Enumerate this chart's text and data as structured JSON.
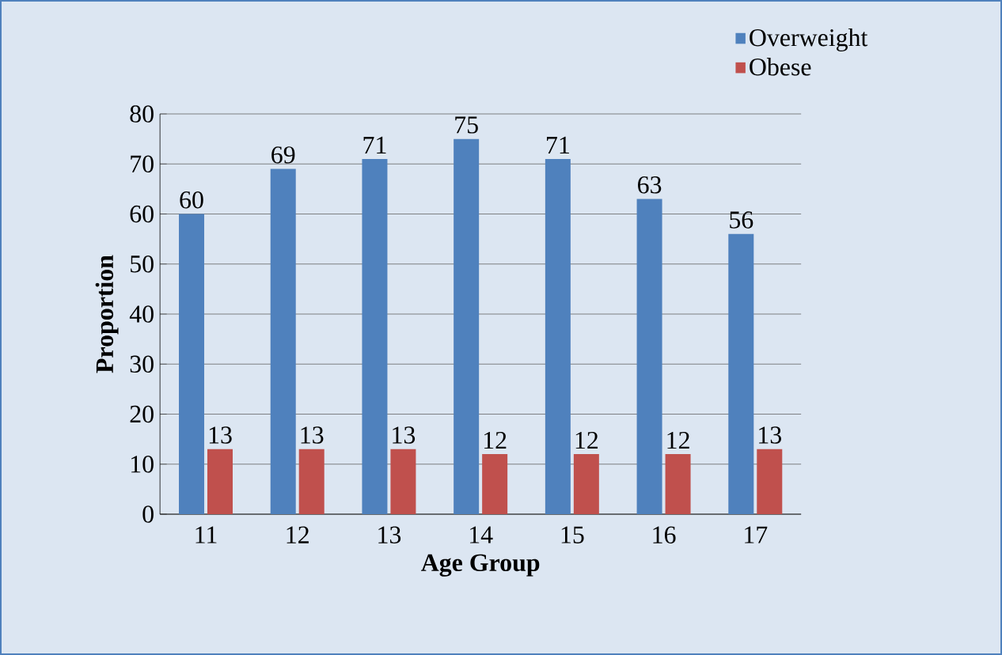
{
  "chart_data": {
    "type": "bar",
    "xlabel": "Age Group",
    "ylabel": "Proportion",
    "categories": [
      "11",
      "12",
      "13",
      "14",
      "15",
      "16",
      "17"
    ],
    "series": [
      {
        "name": "Overweight",
        "color": "#4f81bd",
        "values": [
          60,
          69,
          71,
          75,
          71,
          63,
          56
        ]
      },
      {
        "name": "Obese",
        "color": "#c0504d",
        "values": [
          13,
          13,
          13,
          12,
          12,
          12,
          13
        ]
      }
    ],
    "ylim": [
      0,
      80
    ],
    "yticks": [
      0,
      10,
      20,
      30,
      40,
      50,
      60,
      70,
      80
    ],
    "grid": "y",
    "legend": "top right",
    "data_labels": true
  }
}
